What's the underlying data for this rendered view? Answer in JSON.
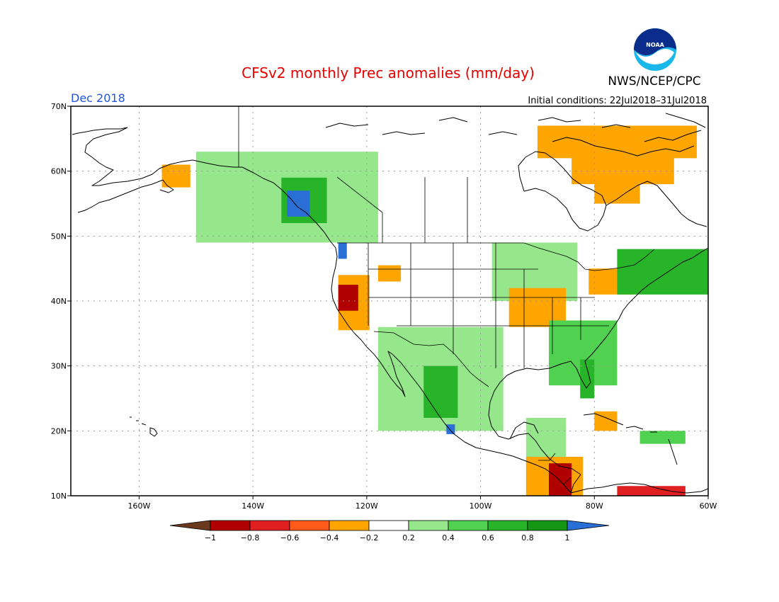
{
  "title": "CFSv2 monthly Prec anomalies (mm/day)",
  "agency": "NWS/NCEP/CPC",
  "logo_text": "NOAA",
  "month": "Dec 2018",
  "initial_conditions": "Initial conditions: 22Jul2018–31Jul2018",
  "map": {
    "lon_range": [
      -172,
      -60
    ],
    "lat_range": [
      10,
      70
    ],
    "lat_ticks": [
      "10N",
      "20N",
      "30N",
      "40N",
      "50N",
      "60N",
      "70N"
    ],
    "lon_ticks": [
      "160W",
      "140W",
      "120W",
      "100W",
      "80W",
      "60W"
    ],
    "grid": "dotted"
  },
  "colorbar": {
    "labels": [
      "−1",
      "−0.8",
      "−0.6",
      "−0.4",
      "−0.2",
      "0.2",
      "0.4",
      "0.6",
      "0.8",
      "1"
    ],
    "colors": [
      "#6b3a1e",
      "#b00000",
      "#e02020",
      "#ff5a1a",
      "#ffa500",
      "#ffffff",
      "#96e68c",
      "#50d250",
      "#28b428",
      "#149614",
      "#2a6fd6"
    ]
  },
  "anomaly_patches": [
    {
      "name": "bc-coast-wet",
      "level": "1",
      "lon": [
        -134,
        -130
      ],
      "lat": [
        53,
        57
      ]
    },
    {
      "name": "bc-coast-green-strong",
      "level": "0.6",
      "lon": [
        -135,
        -127
      ],
      "lat": [
        52,
        59
      ]
    },
    {
      "name": "alaska-bc-green",
      "level": "0.2",
      "lon": [
        -150,
        -118
      ],
      "lat": [
        49,
        63
      ]
    },
    {
      "name": "wa-coast-wet",
      "level": "1",
      "lon": [
        -125,
        -123.5
      ],
      "lat": [
        46.5,
        49
      ]
    },
    {
      "name": "n-california-dry",
      "level": "-0.8",
      "lon": [
        -125,
        -121.5
      ],
      "lat": [
        38.5,
        42.5
      ]
    },
    {
      "name": "california-dry",
      "level": "-0.4",
      "lon": [
        -125,
        -119.5
      ],
      "lat": [
        35.5,
        44
      ]
    },
    {
      "name": "idaho-dry",
      "level": "-0.4",
      "lon": [
        -118,
        -114
      ],
      "lat": [
        43,
        45.5
      ]
    },
    {
      "name": "southwest-green",
      "level": "0.2",
      "lon": [
        -118,
        -96
      ],
      "lat": [
        20,
        36
      ]
    },
    {
      "name": "nw-mexico-green",
      "level": "0.6",
      "lon": [
        -110,
        -104
      ],
      "lat": [
        22,
        30
      ]
    },
    {
      "name": "jalisco-wet",
      "level": "1",
      "lon": [
        -106,
        -104.5
      ],
      "lat": [
        19.5,
        21
      ]
    },
    {
      "name": "ohio-valley-dry",
      "level": "-0.4",
      "lon": [
        -95,
        -85
      ],
      "lat": [
        36,
        42
      ]
    },
    {
      "name": "great-lakes-dry",
      "level": "-0.4",
      "lon": [
        -81,
        -73
      ],
      "lat": [
        41,
        45
      ]
    },
    {
      "name": "upper-midwest-green",
      "level": "0.2",
      "lon": [
        -98,
        -83
      ],
      "lat": [
        40,
        49
      ]
    },
    {
      "name": "southeast-green",
      "level": "0.4",
      "lon": [
        -88,
        -76
      ],
      "lat": [
        27,
        37
      ]
    },
    {
      "name": "florida-green",
      "level": "0.6",
      "lon": [
        -82.5,
        -80
      ],
      "lat": [
        25,
        31
      ]
    },
    {
      "name": "new-england-green",
      "level": "0.6",
      "lon": [
        -76,
        -60
      ],
      "lat": [
        41,
        48
      ]
    },
    {
      "name": "quebec-east-dry",
      "level": "-0.4",
      "lon": [
        -84,
        -66
      ],
      "lat": [
        58,
        63
      ]
    },
    {
      "name": "quebec-north-dry",
      "level": "-0.4",
      "lon": [
        -80,
        -72
      ],
      "lat": [
        55,
        61
      ]
    },
    {
      "name": "baffin-dry",
      "level": "-0.4",
      "lon": [
        -90,
        -62
      ],
      "lat": [
        62,
        67
      ]
    },
    {
      "name": "central-america-dry",
      "level": "-0.4",
      "lon": [
        -92,
        -82
      ],
      "lat": [
        10,
        16
      ]
    },
    {
      "name": "honduras-dry-strong",
      "level": "-0.8",
      "lon": [
        -88,
        -84
      ],
      "lat": [
        10,
        15
      ]
    },
    {
      "name": "caribbean-south-dry",
      "level": "-0.6",
      "lon": [
        -76,
        -64
      ],
      "lat": [
        10,
        11.5
      ]
    },
    {
      "name": "cuba-dry",
      "level": "-0.4",
      "lon": [
        -80,
        -76
      ],
      "lat": [
        20,
        23
      ]
    },
    {
      "name": "antilles-green",
      "level": "0.4",
      "lon": [
        -72,
        -64
      ],
      "lat": [
        18,
        20
      ]
    },
    {
      "name": "yucatan-green",
      "level": "0.2",
      "lon": [
        -92,
        -85
      ],
      "lat": [
        16,
        22
      ]
    },
    {
      "name": "sw-alaska-dry",
      "level": "-0.4",
      "lon": [
        -156,
        -151
      ],
      "lat": [
        57.5,
        61
      ]
    }
  ]
}
